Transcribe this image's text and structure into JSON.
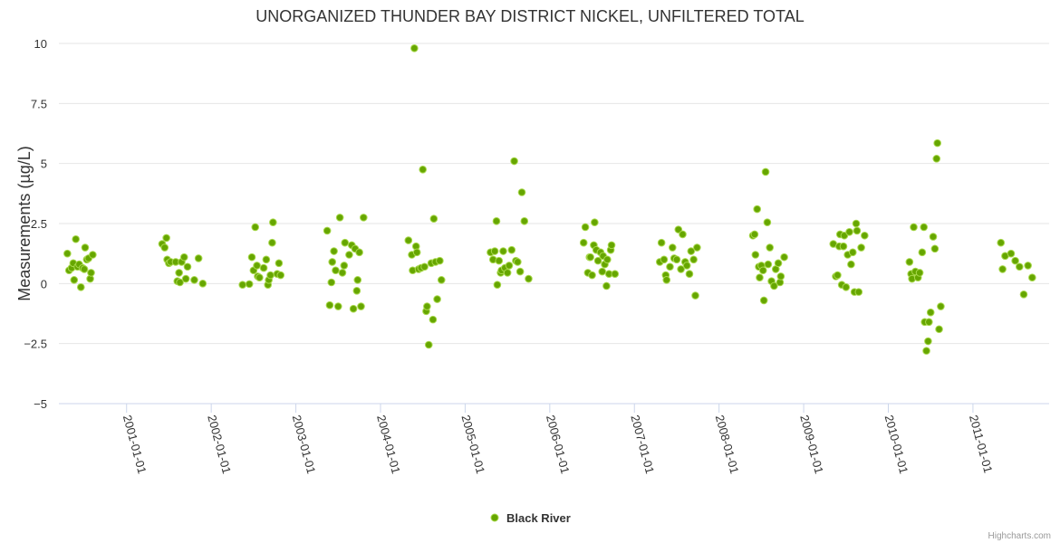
{
  "chart_data": {
    "type": "scatter",
    "title": "UNORGANIZED THUNDER BAY DISTRICT NICKEL, UNFILTERED TOTAL",
    "ylabel": "Measurements (µg/L)",
    "xlabel": "",
    "ylim": [
      -5,
      10
    ],
    "xlim": [
      2000.2,
      2011.9
    ],
    "y_ticks": [
      10,
      7.5,
      5,
      2.5,
      0,
      -2.5,
      -5
    ],
    "y_tick_labels": [
      "10",
      "7.5",
      "5",
      "2.5",
      "0",
      "−2.5",
      "−5"
    ],
    "x_ticks": [
      2001,
      2002,
      2003,
      2004,
      2005,
      2006,
      2007,
      2008,
      2009,
      2010,
      2011
    ],
    "x_tick_labels": [
      "2001-01-01",
      "2002-01-01",
      "2003-01-01",
      "2004-01-01",
      "2005-01-01",
      "2006-01-01",
      "2007-01-01",
      "2008-01-01",
      "2009-01-01",
      "2010-01-01",
      "2011-01-01"
    ],
    "grid": true,
    "legend_position": "bottom-center",
    "colors": {
      "marker_fill": "#66a600",
      "marker_stroke": "#a8d84c",
      "grid": "#e6e6e6",
      "axis": "#ccd6eb",
      "text": "#333333",
      "title": "#333333",
      "credits": "#999999"
    },
    "series": [
      {
        "name": "Black River",
        "points": [
          [
            2000.3,
            1.25
          ],
          [
            2000.32,
            0.55
          ],
          [
            2000.35,
            0.65
          ],
          [
            2000.37,
            0.85
          ],
          [
            2000.38,
            0.15
          ],
          [
            2000.4,
            1.85
          ],
          [
            2000.42,
            0.7
          ],
          [
            2000.44,
            0.8
          ],
          [
            2000.46,
            -0.15
          ],
          [
            2000.48,
            0.65
          ],
          [
            2000.5,
            0.6
          ],
          [
            2000.51,
            1.5
          ],
          [
            2000.53,
            1.0
          ],
          [
            2000.55,
            1.05
          ],
          [
            2000.57,
            0.2
          ],
          [
            2000.58,
            0.45
          ],
          [
            2000.6,
            1.2
          ],
          [
            2001.42,
            1.65
          ],
          [
            2001.45,
            1.5
          ],
          [
            2001.47,
            1.9
          ],
          [
            2001.48,
            1.0
          ],
          [
            2001.5,
            0.85
          ],
          [
            2001.52,
            0.9
          ],
          [
            2001.58,
            0.9
          ],
          [
            2001.6,
            0.1
          ],
          [
            2001.62,
            0.45
          ],
          [
            2001.63,
            0.05
          ],
          [
            2001.65,
            0.9
          ],
          [
            2001.68,
            1.1
          ],
          [
            2001.7,
            0.2
          ],
          [
            2001.72,
            0.7
          ],
          [
            2001.8,
            0.15
          ],
          [
            2001.85,
            1.05
          ],
          [
            2001.9,
            0.0
          ],
          [
            2002.37,
            -0.05
          ],
          [
            2002.45,
            -0.02
          ],
          [
            2002.48,
            1.1
          ],
          [
            2002.5,
            0.55
          ],
          [
            2002.52,
            2.35
          ],
          [
            2002.54,
            0.75
          ],
          [
            2002.55,
            0.3
          ],
          [
            2002.57,
            0.25
          ],
          [
            2002.62,
            0.65
          ],
          [
            2002.65,
            1.0
          ],
          [
            2002.67,
            -0.05
          ],
          [
            2002.68,
            0.15
          ],
          [
            2002.7,
            0.35
          ],
          [
            2002.72,
            1.7
          ],
          [
            2002.73,
            2.55
          ],
          [
            2002.78,
            0.4
          ],
          [
            2002.8,
            0.85
          ],
          [
            2002.82,
            0.35
          ],
          [
            2003.37,
            2.2
          ],
          [
            2003.4,
            -0.9
          ],
          [
            2003.42,
            0.05
          ],
          [
            2003.43,
            0.9
          ],
          [
            2003.45,
            1.35
          ],
          [
            2003.47,
            0.55
          ],
          [
            2003.5,
            -0.95
          ],
          [
            2003.52,
            2.75
          ],
          [
            2003.55,
            0.45
          ],
          [
            2003.57,
            0.75
          ],
          [
            2003.58,
            1.7
          ],
          [
            2003.63,
            1.2
          ],
          [
            2003.66,
            1.6
          ],
          [
            2003.68,
            -1.05
          ],
          [
            2003.7,
            1.45
          ],
          [
            2003.72,
            -0.3
          ],
          [
            2003.73,
            0.15
          ],
          [
            2003.75,
            1.3
          ],
          [
            2003.77,
            -0.95
          ],
          [
            2003.8,
            2.75
          ],
          [
            2004.33,
            1.8
          ],
          [
            2004.37,
            1.2
          ],
          [
            2004.38,
            0.55
          ],
          [
            2004.4,
            9.8
          ],
          [
            2004.42,
            1.55
          ],
          [
            2004.43,
            1.3
          ],
          [
            2004.45,
            0.6
          ],
          [
            2004.48,
            0.65
          ],
          [
            2004.5,
            4.75
          ],
          [
            2004.52,
            0.7
          ],
          [
            2004.54,
            -1.15
          ],
          [
            2004.55,
            -0.95
          ],
          [
            2004.57,
            -2.55
          ],
          [
            2004.6,
            0.85
          ],
          [
            2004.62,
            -1.5
          ],
          [
            2004.63,
            2.7
          ],
          [
            2004.65,
            0.9
          ],
          [
            2004.67,
            -0.65
          ],
          [
            2004.7,
            0.95
          ],
          [
            2004.72,
            0.15
          ],
          [
            2005.3,
            1.3
          ],
          [
            2005.33,
            1.0
          ],
          [
            2005.35,
            1.35
          ],
          [
            2005.37,
            2.6
          ],
          [
            2005.38,
            -0.05
          ],
          [
            2005.4,
            0.95
          ],
          [
            2005.42,
            0.45
          ],
          [
            2005.43,
            0.55
          ],
          [
            2005.45,
            1.35
          ],
          [
            2005.47,
            0.65
          ],
          [
            2005.5,
            0.45
          ],
          [
            2005.52,
            0.75
          ],
          [
            2005.55,
            1.4
          ],
          [
            2005.58,
            5.1
          ],
          [
            2005.6,
            0.95
          ],
          [
            2005.62,
            0.9
          ],
          [
            2005.65,
            0.5
          ],
          [
            2005.67,
            3.8
          ],
          [
            2005.7,
            2.6
          ],
          [
            2005.75,
            0.2
          ],
          [
            2006.4,
            1.7
          ],
          [
            2006.42,
            2.35
          ],
          [
            2006.45,
            0.45
          ],
          [
            2006.47,
            1.1
          ],
          [
            2006.48,
            1.1
          ],
          [
            2006.5,
            0.35
          ],
          [
            2006.52,
            1.6
          ],
          [
            2006.53,
            2.55
          ],
          [
            2006.55,
            1.4
          ],
          [
            2006.57,
            0.95
          ],
          [
            2006.6,
            1.3
          ],
          [
            2006.62,
            0.5
          ],
          [
            2006.63,
            1.15
          ],
          [
            2006.65,
            0.8
          ],
          [
            2006.67,
            -0.1
          ],
          [
            2006.68,
            1.0
          ],
          [
            2006.7,
            0.4
          ],
          [
            2006.72,
            1.4
          ],
          [
            2006.73,
            1.6
          ],
          [
            2006.77,
            0.4
          ],
          [
            2007.3,
            0.9
          ],
          [
            2007.32,
            1.7
          ],
          [
            2007.35,
            1.0
          ],
          [
            2007.37,
            0.35
          ],
          [
            2007.38,
            0.15
          ],
          [
            2007.42,
            0.7
          ],
          [
            2007.45,
            1.5
          ],
          [
            2007.47,
            1.05
          ],
          [
            2007.5,
            1.0
          ],
          [
            2007.52,
            2.25
          ],
          [
            2007.55,
            0.6
          ],
          [
            2007.57,
            2.05
          ],
          [
            2007.6,
            0.9
          ],
          [
            2007.62,
            0.75
          ],
          [
            2007.65,
            0.4
          ],
          [
            2007.67,
            1.35
          ],
          [
            2007.7,
            1.0
          ],
          [
            2007.72,
            -0.5
          ],
          [
            2007.74,
            1.5
          ],
          [
            2008.4,
            2.0
          ],
          [
            2008.42,
            2.05
          ],
          [
            2008.43,
            1.2
          ],
          [
            2008.45,
            3.1
          ],
          [
            2008.47,
            0.7
          ],
          [
            2008.48,
            0.25
          ],
          [
            2008.5,
            0.75
          ],
          [
            2008.52,
            0.55
          ],
          [
            2008.53,
            -0.7
          ],
          [
            2008.55,
            4.65
          ],
          [
            2008.57,
            2.55
          ],
          [
            2008.58,
            0.8
          ],
          [
            2008.6,
            1.5
          ],
          [
            2008.62,
            0.1
          ],
          [
            2008.65,
            -0.1
          ],
          [
            2008.67,
            0.6
          ],
          [
            2008.7,
            0.85
          ],
          [
            2008.72,
            0.05
          ],
          [
            2008.73,
            0.3
          ],
          [
            2008.77,
            1.1
          ],
          [
            2009.35,
            1.65
          ],
          [
            2009.38,
            0.3
          ],
          [
            2009.4,
            0.35
          ],
          [
            2009.42,
            1.55
          ],
          [
            2009.43,
            2.05
          ],
          [
            2009.45,
            -0.05
          ],
          [
            2009.47,
            1.55
          ],
          [
            2009.48,
            2.0
          ],
          [
            2009.5,
            -0.15
          ],
          [
            2009.52,
            1.2
          ],
          [
            2009.54,
            2.15
          ],
          [
            2009.56,
            0.8
          ],
          [
            2009.58,
            1.3
          ],
          [
            2009.6,
            -0.35
          ],
          [
            2009.62,
            2.5
          ],
          [
            2009.63,
            2.2
          ],
          [
            2009.65,
            -0.35
          ],
          [
            2009.68,
            1.5
          ],
          [
            2009.72,
            2.0
          ],
          [
            2010.25,
            0.9
          ],
          [
            2010.27,
            0.4
          ],
          [
            2010.28,
            0.2
          ],
          [
            2010.3,
            2.35
          ],
          [
            2010.32,
            0.5
          ],
          [
            2010.35,
            0.25
          ],
          [
            2010.37,
            0.45
          ],
          [
            2010.4,
            1.3
          ],
          [
            2010.42,
            2.35
          ],
          [
            2010.43,
            -1.6
          ],
          [
            2010.45,
            -2.8
          ],
          [
            2010.47,
            -2.4
          ],
          [
            2010.48,
            -1.6
          ],
          [
            2010.5,
            -1.2
          ],
          [
            2010.53,
            1.95
          ],
          [
            2010.55,
            1.45
          ],
          [
            2010.57,
            5.2
          ],
          [
            2010.58,
            5.85
          ],
          [
            2010.6,
            -1.9
          ],
          [
            2010.62,
            -0.95
          ],
          [
            2011.33,
            1.7
          ],
          [
            2011.35,
            0.6
          ],
          [
            2011.38,
            1.15
          ],
          [
            2011.45,
            1.25
          ],
          [
            2011.5,
            0.95
          ],
          [
            2011.55,
            0.7
          ],
          [
            2011.6,
            -0.45
          ],
          [
            2011.65,
            0.75
          ],
          [
            2011.7,
            0.25
          ]
        ]
      }
    ]
  },
  "credits": "Highcharts.com"
}
